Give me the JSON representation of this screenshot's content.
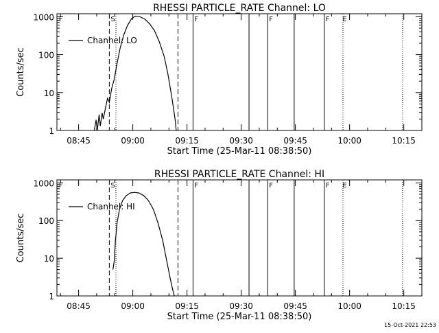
{
  "chart_data": [
    {
      "type": "line",
      "title": "RHESSI PARTICLE_RATE Channel: LO",
      "xlabel": "Start Time (25-Mar-11 08:38:50)",
      "ylabel": "Counts/sec",
      "yscale": "log",
      "xlim": [
        "08:39:00",
        "10:20:00"
      ],
      "ylim": [
        1,
        1200
      ],
      "x_ticks": [
        "08:45",
        "09:00",
        "09:15",
        "09:30",
        "09:45",
        "10:00",
        "10:15"
      ],
      "y_ticks": [
        "1",
        "10",
        "100",
        "1000"
      ],
      "legend": {
        "label": "Channel: LO",
        "position": "top-left"
      },
      "series": [
        {
          "name": "Channel: LO",
          "x": [
            "08:49:20",
            "08:49:50",
            "08:50:10",
            "08:50:40",
            "08:51:00",
            "08:51:30",
            "08:51:50",
            "08:52:30",
            "08:53:00",
            "08:53:30",
            "08:54:10",
            "08:54:50",
            "08:55:40",
            "08:56:30",
            "08:57:30",
            "08:58:30",
            "08:59:40",
            "09:00:40",
            "09:02:00",
            "09:03:20",
            "09:04:40",
            "09:06:00",
            "09:07:20",
            "09:08:40",
            "09:09:40",
            "09:10:40",
            "09:11:20",
            "09:11:50",
            "09:12:00"
          ],
          "y": [
            1.0,
            1.9,
            1.0,
            2.6,
            1.3,
            2.9,
            2.0,
            4.2,
            7.0,
            5.5,
            13,
            22,
            60,
            150,
            330,
            580,
            900,
            1030,
            1000,
            860,
            650,
            430,
            220,
            90,
            33,
            9,
            3.5,
            1.6,
            1.0
          ]
        }
      ],
      "flags": [
        {
          "label": "F",
          "at": "08:39:10"
        },
        {
          "label": "S",
          "at": "08:53:30"
        },
        {
          "label": "F",
          "at": "09:16:40"
        },
        {
          "label": "F",
          "at": "09:37:20"
        },
        {
          "label": "F",
          "at": "09:53:00"
        },
        {
          "label": "E",
          "at": "09:57:40"
        }
      ],
      "dashed_lines": [
        "08:53:30",
        "09:12:30"
      ],
      "solid_lines": [
        "09:16:40",
        "09:32:10",
        "09:37:20",
        "09:44:40",
        "09:53:00"
      ],
      "dotted_lines": [
        "08:55:20",
        "09:58:10",
        "10:14:40"
      ]
    },
    {
      "type": "line",
      "title": "RHESSI PARTICLE_RATE Channel: HI",
      "xlabel": "Start Time (25-Mar-11 08:38:50)",
      "ylabel": "Counts/sec",
      "yscale": "log",
      "xlim": [
        "08:39:00",
        "10:20:00"
      ],
      "ylim": [
        1,
        1200
      ],
      "x_ticks": [
        "08:45",
        "09:00",
        "09:15",
        "09:30",
        "09:45",
        "10:00",
        "10:15"
      ],
      "y_ticks": [
        "1",
        "10",
        "100",
        "1000"
      ],
      "legend": {
        "label": "Channel: HI",
        "position": "top-left"
      },
      "series": [
        {
          "name": "Channel: HI",
          "x": [
            "08:54:30",
            "08:54:50",
            "08:55:10",
            "08:55:40",
            "08:56:20",
            "08:57:10",
            "08:58:10",
            "08:59:20",
            "09:00:30",
            "09:01:40",
            "09:03:00",
            "09:04:20",
            "09:05:40",
            "09:07:00",
            "09:08:20",
            "09:09:20",
            "09:10:20",
            "09:11:00",
            "09:11:30"
          ],
          "y": [
            5.0,
            8.0,
            28,
            90,
            200,
            340,
            460,
            540,
            560,
            540,
            460,
            340,
            200,
            85,
            28,
            9,
            3,
            1.5,
            1.0
          ]
        }
      ],
      "flags": [
        {
          "label": "F",
          "at": "08:39:10"
        },
        {
          "label": "S",
          "at": "08:53:30"
        },
        {
          "label": "F",
          "at": "09:16:40"
        },
        {
          "label": "F",
          "at": "09:37:20"
        },
        {
          "label": "F",
          "at": "09:53:00"
        },
        {
          "label": "E",
          "at": "09:57:40"
        }
      ],
      "dashed_lines": [
        "08:53:30",
        "09:12:30"
      ],
      "solid_lines": [
        "09:16:40",
        "09:32:10",
        "09:37:20",
        "09:44:40",
        "09:53:00"
      ],
      "dotted_lines": [
        "08:55:20",
        "09:58:10",
        "10:14:40"
      ]
    }
  ],
  "footer": {
    "timestamp": "15-Oct-2021 22:53"
  }
}
